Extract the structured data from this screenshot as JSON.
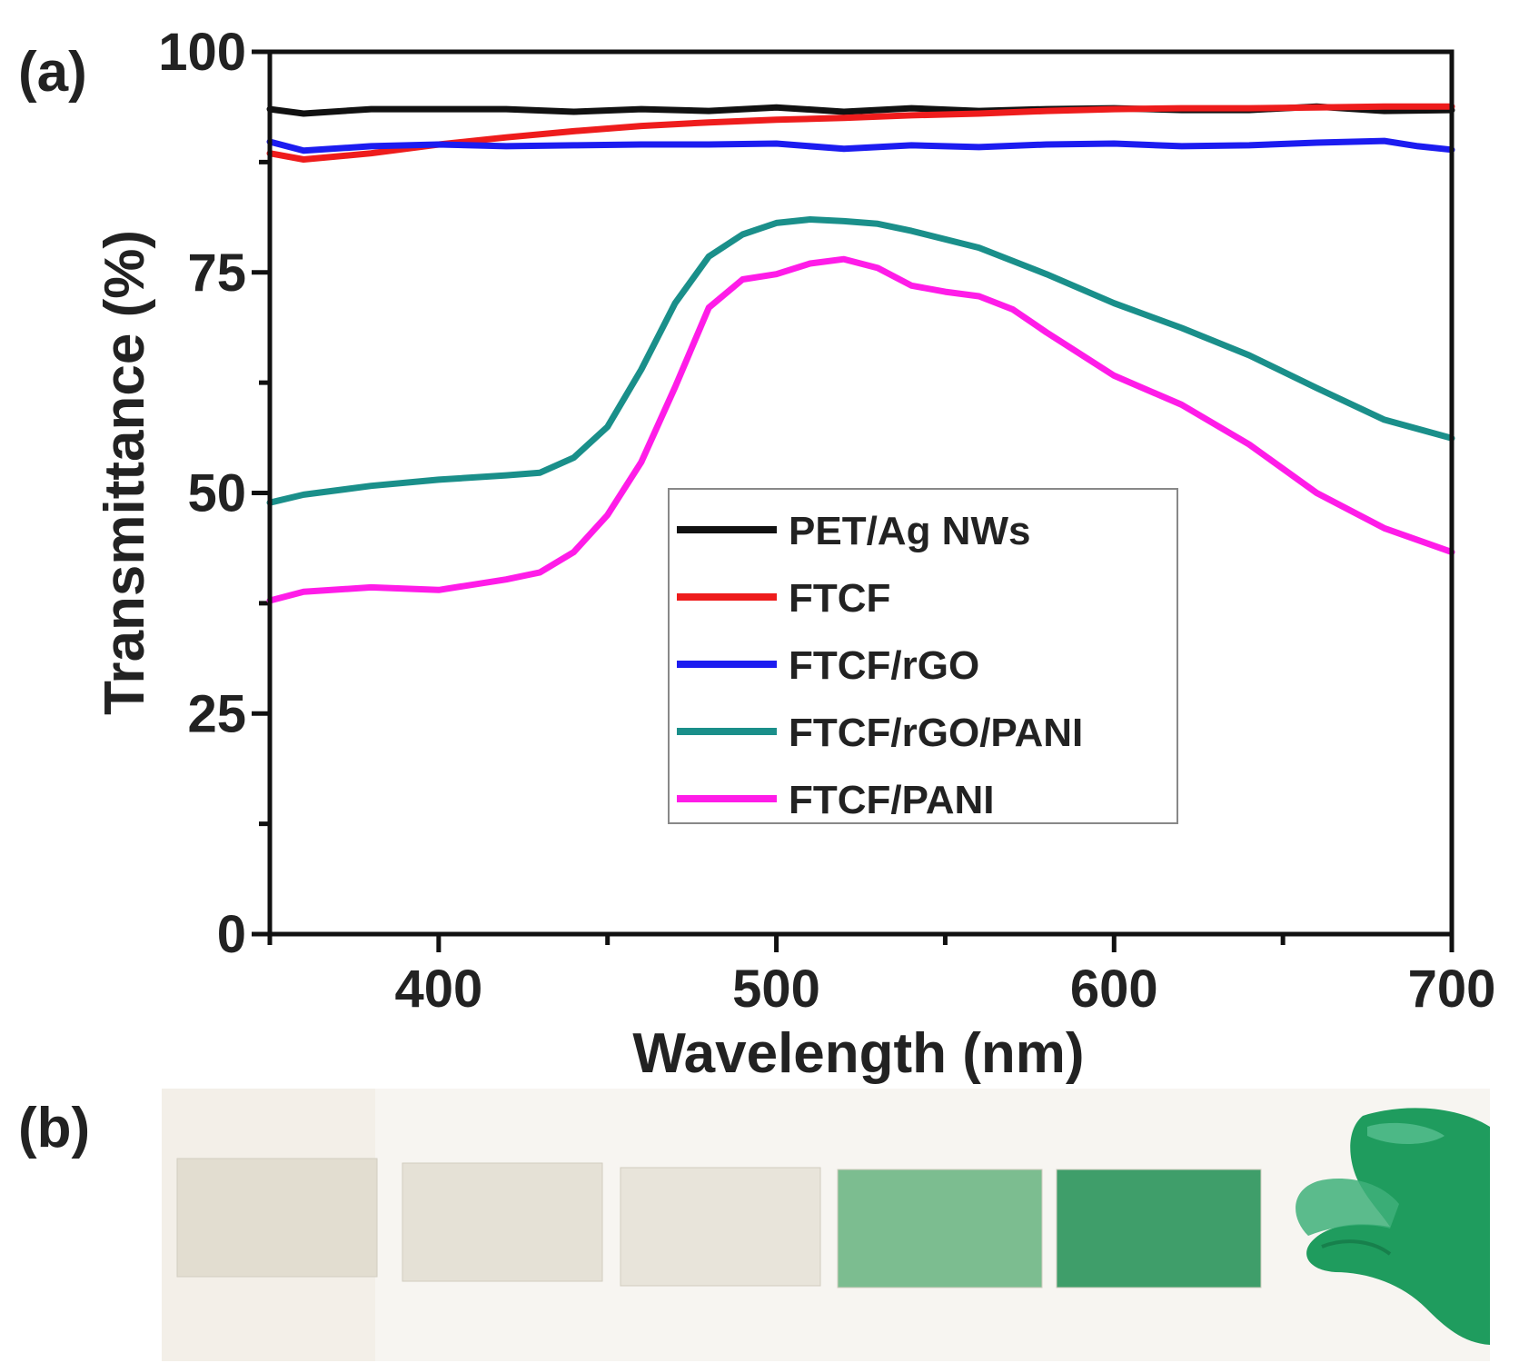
{
  "panel_a_label": "(a)",
  "panel_b_label": "(b)",
  "chart_data": {
    "type": "line",
    "title": "",
    "xlabel": "Wavelength (nm)",
    "ylabel": "Transmittance (%)",
    "xlim": [
      350,
      700
    ],
    "ylim": [
      0,
      100
    ],
    "xticks": [
      400,
      500,
      600,
      700
    ],
    "yticks": [
      0,
      25,
      50,
      75,
      100
    ],
    "legend_position": "center-right",
    "series": [
      {
        "name": "PET/Ag NWs",
        "color": "#111111",
        "x": [
          350,
          360,
          380,
          400,
          420,
          440,
          460,
          480,
          500,
          520,
          540,
          560,
          580,
          600,
          620,
          640,
          660,
          680,
          700
        ],
        "values": [
          93.5,
          93.0,
          93.5,
          93.5,
          93.5,
          93.2,
          93.5,
          93.3,
          93.7,
          93.2,
          93.6,
          93.3,
          93.5,
          93.6,
          93.4,
          93.4,
          93.8,
          93.3,
          93.4
        ]
      },
      {
        "name": "FTCF",
        "color": "#ee1c1c",
        "x": [
          350,
          360,
          380,
          400,
          420,
          440,
          460,
          480,
          500,
          520,
          540,
          560,
          580,
          600,
          620,
          640,
          660,
          680,
          700
        ],
        "values": [
          88.5,
          87.8,
          88.5,
          89.5,
          90.3,
          91.0,
          91.6,
          92.0,
          92.3,
          92.5,
          92.8,
          93.0,
          93.3,
          93.5,
          93.6,
          93.6,
          93.7,
          93.8,
          93.8
        ]
      },
      {
        "name": "FTCF/rGO",
        "color": "#1c1cf0",
        "x": [
          350,
          360,
          380,
          400,
          420,
          440,
          460,
          480,
          500,
          520,
          540,
          560,
          580,
          600,
          620,
          640,
          660,
          680,
          690,
          700
        ],
        "values": [
          89.8,
          88.8,
          89.3,
          89.5,
          89.3,
          89.4,
          89.5,
          89.5,
          89.6,
          89.0,
          89.4,
          89.2,
          89.5,
          89.6,
          89.3,
          89.4,
          89.7,
          89.9,
          89.3,
          88.9
        ]
      },
      {
        "name": "FTCF/rGO/PANI",
        "color": "#1a8f8a",
        "x": [
          350,
          360,
          380,
          400,
          420,
          430,
          440,
          450,
          460,
          470,
          480,
          490,
          500,
          510,
          520,
          530,
          540,
          560,
          580,
          600,
          620,
          640,
          660,
          680,
          700
        ],
        "values": [
          48.9,
          49.8,
          50.8,
          51.5,
          52.0,
          52.3,
          54.0,
          57.5,
          64.0,
          71.5,
          76.8,
          79.3,
          80.6,
          81.0,
          80.8,
          80.5,
          79.7,
          77.8,
          74.8,
          71.5,
          68.7,
          65.6,
          61.9,
          58.3,
          56.2
        ]
      },
      {
        "name": "FTCF/PANI",
        "color": "#ff1ce8",
        "x": [
          350,
          360,
          380,
          400,
          420,
          430,
          440,
          450,
          460,
          470,
          480,
          490,
          500,
          510,
          520,
          530,
          540,
          550,
          560,
          570,
          580,
          600,
          620,
          640,
          660,
          680,
          700
        ],
        "values": [
          37.8,
          38.8,
          39.3,
          39.0,
          40.2,
          41.0,
          43.3,
          47.5,
          53.5,
          62.0,
          71.0,
          74.2,
          74.8,
          76.0,
          76.5,
          75.5,
          73.5,
          72.8,
          72.3,
          70.8,
          68.2,
          63.3,
          60.0,
          55.5,
          50.0,
          46.0,
          43.3
        ]
      }
    ]
  },
  "photo_strip": {
    "sample_colors": [
      "#e2ddd0",
      "#e5e1d6",
      "#e8e4da",
      "#7cbd90",
      "#3f9e6a"
    ],
    "glove_color": "#1f9c5e"
  }
}
